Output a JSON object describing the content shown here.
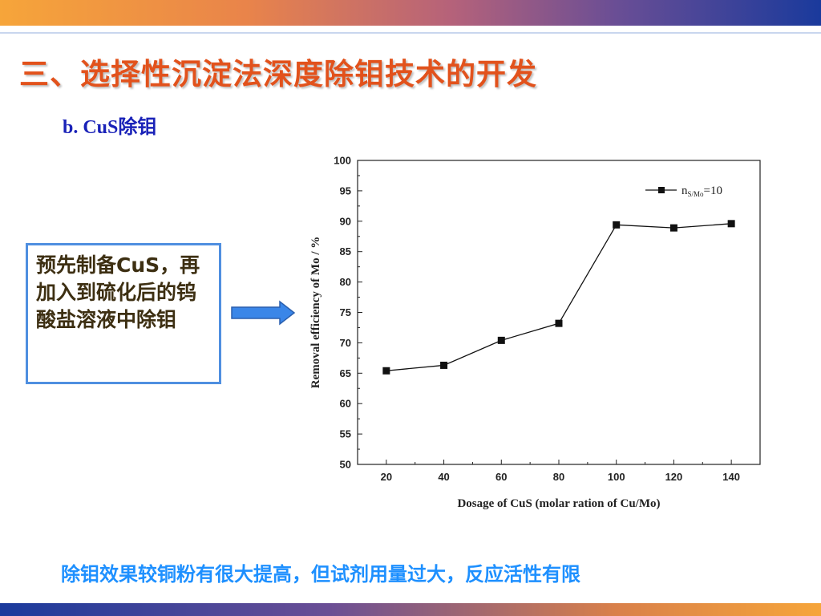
{
  "slide": {
    "title": "三、选择性沉淀法深度除钼技术的开发",
    "subtitle": "b. CuS除钼",
    "note": "预先制备CuS，再加入到硫化后的钨酸盐溶液中除钼",
    "conclusion": "除钼效果较铜粉有很大提高，但试剂用量过大，反应活性有限"
  },
  "colors": {
    "title": "#e2521c",
    "subtitle": "#1a22b8",
    "note_border": "#4f8fe0",
    "arrow": "#3a86e8",
    "conclusion": "#1e90ff"
  },
  "chart_data": {
    "type": "line",
    "x": [
      20,
      40,
      60,
      80,
      100,
      120,
      140
    ],
    "series": [
      {
        "name": "n",
        "name_sub": "S/Mo",
        "name_suffix": "=10",
        "values": [
          65.4,
          66.3,
          70.4,
          73.2,
          89.4,
          88.9,
          89.6
        ],
        "marker": "square"
      }
    ],
    "xlabel": "Dosage of CuS (molar ration of Cu/Mo)",
    "ylabel": "Removal efficiency of Mo / %",
    "xticks": [
      20,
      40,
      60,
      80,
      100,
      120,
      140
    ],
    "yticks": [
      50,
      55,
      60,
      65,
      70,
      75,
      80,
      85,
      90,
      95,
      100
    ],
    "xlim": [
      10,
      150
    ],
    "ylim": [
      50,
      100
    ],
    "grid": false,
    "legend": "top-right"
  }
}
